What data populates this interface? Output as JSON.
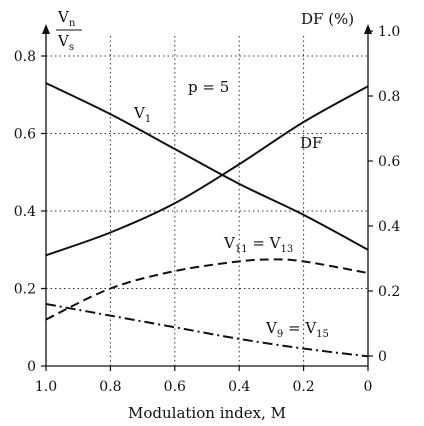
{
  "chart_data": {
    "type": "line",
    "xlabel": "Modulation index, M",
    "x_ticks": [
      "1.0",
      "0.8",
      "0.6",
      "0.4",
      "0.2",
      "0"
    ],
    "xlim": [
      1.0,
      0.0
    ],
    "left_axis": {
      "label": {
        "numerator": "V",
        "numerator_sub": "n",
        "denominator": "V",
        "denominator_sub": "s"
      },
      "ylim": [
        0,
        0.8
      ],
      "ticks": [
        "0",
        "0.2",
        "0.4",
        "0.6",
        "0.8"
      ]
    },
    "right_axis": {
      "label": "DF (%)",
      "ylim": [
        0,
        1.0
      ],
      "ticks": [
        "0",
        "0.2",
        "0.4",
        "0.6",
        "0.8",
        "1.0"
      ]
    },
    "grid": "dotted",
    "annotation": "p = 5",
    "series": [
      {
        "name": "V",
        "name_sub": "1",
        "axis": "left",
        "style": "solid",
        "x": [
          1.0,
          0.8,
          0.6,
          0.4,
          0.2,
          0.0
        ],
        "y": [
          0.73,
          0.65,
          0.56,
          0.47,
          0.39,
          0.3
        ]
      },
      {
        "name": "DF",
        "axis": "right",
        "style": "solid",
        "x": [
          1.0,
          0.8,
          0.6,
          0.4,
          0.2,
          0.0
        ],
        "y": [
          0.31,
          0.38,
          0.47,
          0.59,
          0.72,
          0.83
        ]
      },
      {
        "name": "V",
        "name_sub": "11",
        "name_suffix": " = V",
        "name_suffix_sub": "13",
        "axis": "left",
        "style": "dashed",
        "x": [
          1.0,
          0.8,
          0.6,
          0.4,
          0.3,
          0.2,
          0.0
        ],
        "y": [
          0.12,
          0.2,
          0.245,
          0.27,
          0.275,
          0.27,
          0.24
        ]
      },
      {
        "name": "V",
        "name_sub": "9",
        "name_suffix": " = V",
        "name_suffix_sub": "15",
        "axis": "left",
        "style": "dash-dot",
        "x": [
          1.0,
          0.8,
          0.6,
          0.4,
          0.2,
          0.0
        ],
        "y": [
          0.16,
          0.13,
          0.1,
          0.07,
          0.045,
          0.025
        ]
      }
    ]
  }
}
